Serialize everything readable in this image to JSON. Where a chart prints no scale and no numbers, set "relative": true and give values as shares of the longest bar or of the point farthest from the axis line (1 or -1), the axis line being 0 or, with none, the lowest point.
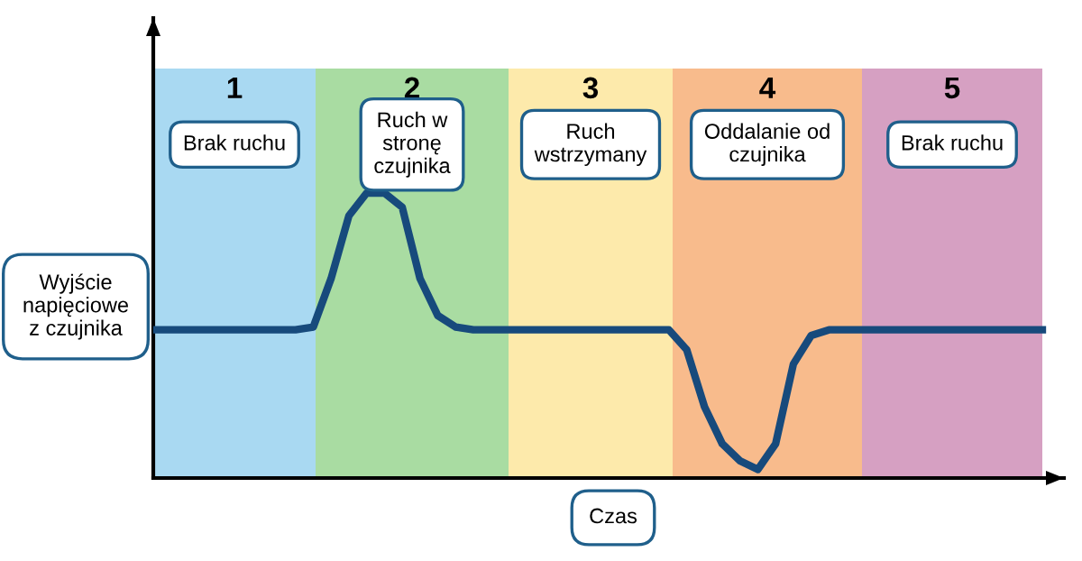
{
  "chart_data": {
    "type": "line",
    "relative": true,
    "xlabel": "Czas",
    "ylabel": "Wyjście\nnapięciowe\nz czujnika",
    "categories": [
      null,
      null,
      null,
      null,
      null,
      null,
      null,
      null,
      null,
      null,
      null,
      null,
      null,
      null,
      null,
      null,
      null,
      null,
      null,
      null,
      null,
      null,
      null,
      null,
      null,
      null,
      null,
      null,
      null,
      null,
      null,
      null,
      null,
      null,
      null,
      null,
      null,
      null,
      null,
      null,
      null,
      null,
      null,
      null,
      null,
      null,
      null,
      null,
      null,
      null,
      null
    ],
    "series": [
      {
        "color": "#174a7c",
        "values": [
          0.52,
          0.52,
          0.52,
          0.52,
          0.52,
          0.52,
          0.52,
          0.52,
          0.52,
          0.53,
          0.7,
          0.92,
          1.0,
          1.0,
          0.95,
          0.7,
          0.57,
          0.53,
          0.52,
          0.52,
          0.52,
          0.52,
          0.52,
          0.52,
          0.52,
          0.52,
          0.52,
          0.52,
          0.52,
          0.52,
          0.45,
          0.25,
          0.12,
          0.06,
          0.03,
          0.12,
          0.4,
          0.5,
          0.52,
          0.52,
          0.52,
          0.52,
          0.52,
          0.52,
          0.52,
          0.52,
          0.52,
          0.52,
          0.52,
          0.52,
          0.52
        ]
      }
    ],
    "annotations": [
      "1",
      "Brak ruchu",
      "2",
      "Ruch w\nstronę\nczujnika",
      "3",
      "Ruch\nwstrzymany",
      "4",
      "Oddalanie od\nczujnika",
      "5",
      "Brak ruchu"
    ],
    "grid": false,
    "marker": "none",
    "line_style": "solid"
  }
}
